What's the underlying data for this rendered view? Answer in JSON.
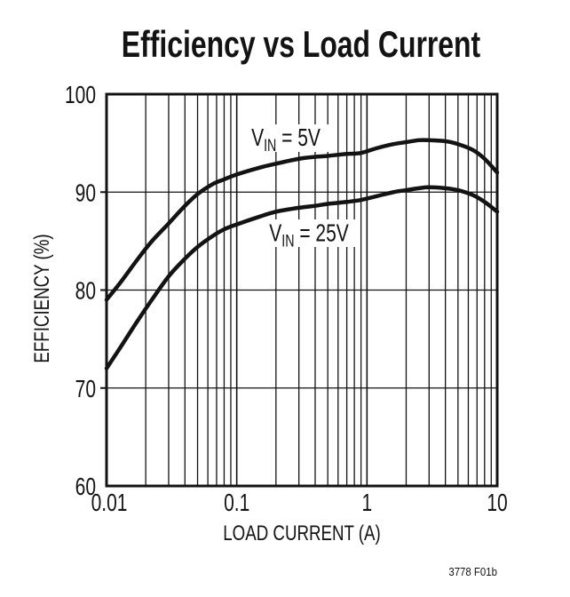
{
  "title": "Efficiency vs Load Current",
  "figure_note": "3778 F01b",
  "ink_color": "#131313",
  "background_color": "#ffffff",
  "chart_data": {
    "type": "line",
    "title": "Efficiency vs Load Current",
    "xlabel": "LOAD CURRENT (A)",
    "ylabel": "EFFICIENCY (%)",
    "x_scale": "log",
    "xlim": [
      0.01,
      10
    ],
    "ylim": [
      60,
      100
    ],
    "y_tick_step": 10,
    "x_tick_labels": [
      "0.01",
      "0.1",
      "1",
      "10"
    ],
    "x_tick_values": [
      0.01,
      0.1,
      1,
      10
    ],
    "y_tick_labels": [
      "100",
      "90",
      "80",
      "70",
      "60"
    ],
    "y_tick_values": [
      100,
      90,
      80,
      70,
      60
    ],
    "grid": "log minor vertical lines each decade; horizontal lines every 10%",
    "legend": "none (inline curve annotations)",
    "line_color": "#131313",
    "series": [
      {
        "name": "VIN = 5V",
        "label": {
          "base": "V",
          "sub": "IN",
          "rest": " = 5V"
        },
        "label_at": {
          "x": 0.24,
          "y": 94.7
        },
        "points": [
          [
            0.01,
            79.0
          ],
          [
            0.013,
            80.9
          ],
          [
            0.017,
            83.0
          ],
          [
            0.022,
            84.9
          ],
          [
            0.03,
            86.8
          ],
          [
            0.04,
            88.6
          ],
          [
            0.05,
            89.8
          ],
          [
            0.065,
            90.8
          ],
          [
            0.08,
            91.3
          ],
          [
            0.1,
            91.8
          ],
          [
            0.15,
            92.5
          ],
          [
            0.2,
            92.9
          ],
          [
            0.3,
            93.4
          ],
          [
            0.4,
            93.6
          ],
          [
            0.5,
            93.7
          ],
          [
            0.7,
            93.9
          ],
          [
            0.9,
            94.0
          ],
          [
            1.2,
            94.5
          ],
          [
            1.6,
            94.9
          ],
          [
            2,
            95.1
          ],
          [
            2.5,
            95.3
          ],
          [
            3,
            95.3
          ],
          [
            4,
            95.2
          ],
          [
            5,
            94.9
          ],
          [
            6.5,
            94.3
          ],
          [
            8,
            93.4
          ],
          [
            10,
            92.0
          ]
        ]
      },
      {
        "name": "VIN = 25V",
        "label": {
          "base": "V",
          "sub": "IN",
          "rest": " = 25V"
        },
        "label_at": {
          "x": 0.36,
          "y": 85.0
        },
        "points": [
          [
            0.01,
            72.0
          ],
          [
            0.013,
            74.3
          ],
          [
            0.017,
            76.7
          ],
          [
            0.022,
            78.9
          ],
          [
            0.03,
            81.4
          ],
          [
            0.04,
            83.2
          ],
          [
            0.05,
            84.4
          ],
          [
            0.065,
            85.5
          ],
          [
            0.08,
            86.2
          ],
          [
            0.1,
            86.7
          ],
          [
            0.15,
            87.5
          ],
          [
            0.2,
            88.0
          ],
          [
            0.3,
            88.4
          ],
          [
            0.4,
            88.6
          ],
          [
            0.5,
            88.8
          ],
          [
            0.7,
            89.0
          ],
          [
            0.9,
            89.2
          ],
          [
            1.2,
            89.6
          ],
          [
            1.6,
            90.0
          ],
          [
            2,
            90.2
          ],
          [
            2.5,
            90.4
          ],
          [
            3,
            90.5
          ],
          [
            4,
            90.4
          ],
          [
            5,
            90.2
          ],
          [
            6.5,
            89.7
          ],
          [
            8,
            89.0
          ],
          [
            10,
            88.0
          ]
        ]
      }
    ]
  }
}
